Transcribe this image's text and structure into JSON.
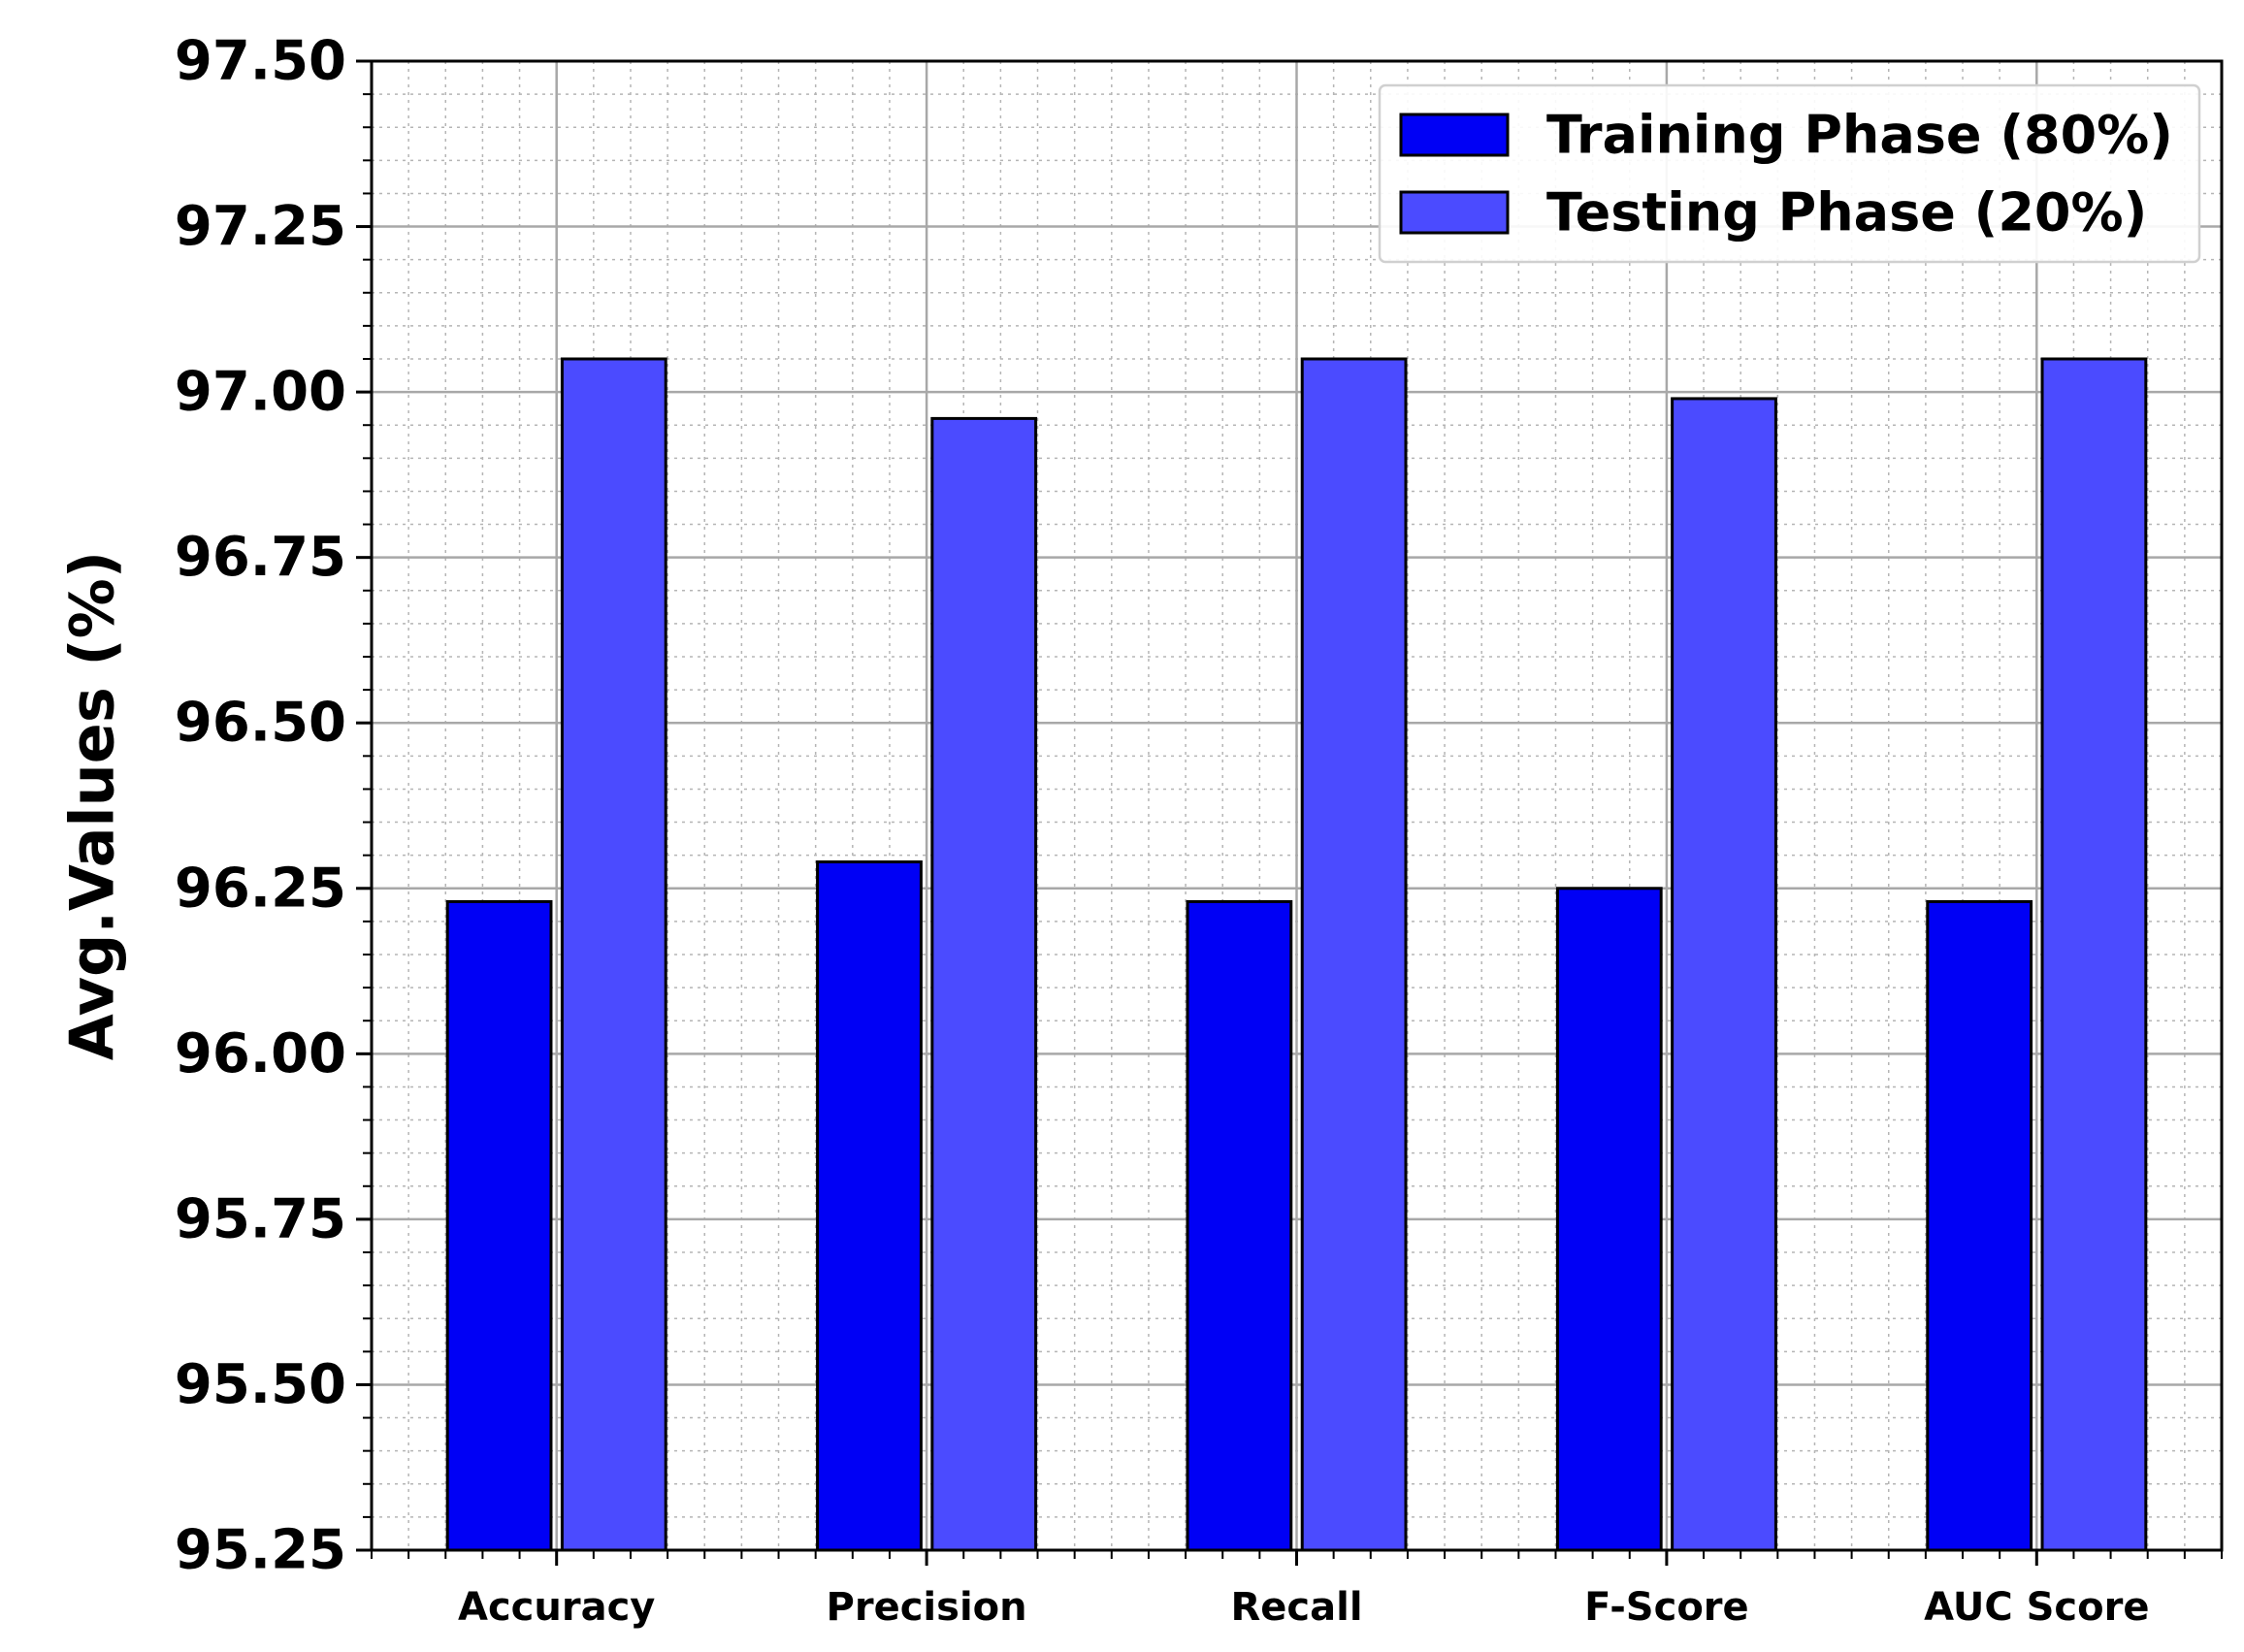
{
  "chart_data": {
    "type": "bar",
    "title": "",
    "xlabel": "",
    "ylabel": "Avg.Values (%)",
    "categories": [
      "Accuracy",
      "Precision",
      "Recall",
      "F-Score",
      "AUC Score"
    ],
    "series": [
      {
        "name": "Training Phase (80%)",
        "color": "#0000f5",
        "values": [
          96.23,
          96.29,
          96.23,
          96.25,
          96.23
        ]
      },
      {
        "name": "Testing Phase (20%)",
        "color": "#4b4bff",
        "values": [
          97.05,
          96.96,
          97.05,
          96.99,
          97.05
        ]
      }
    ],
    "ylim": [
      95.25,
      97.5
    ],
    "yticks": [
      "95.25",
      "95.50",
      "95.75",
      "96.00",
      "96.25",
      "96.50",
      "96.75",
      "97.00",
      "97.25",
      "97.50"
    ],
    "grid": true,
    "legend_position": "top-right"
  }
}
